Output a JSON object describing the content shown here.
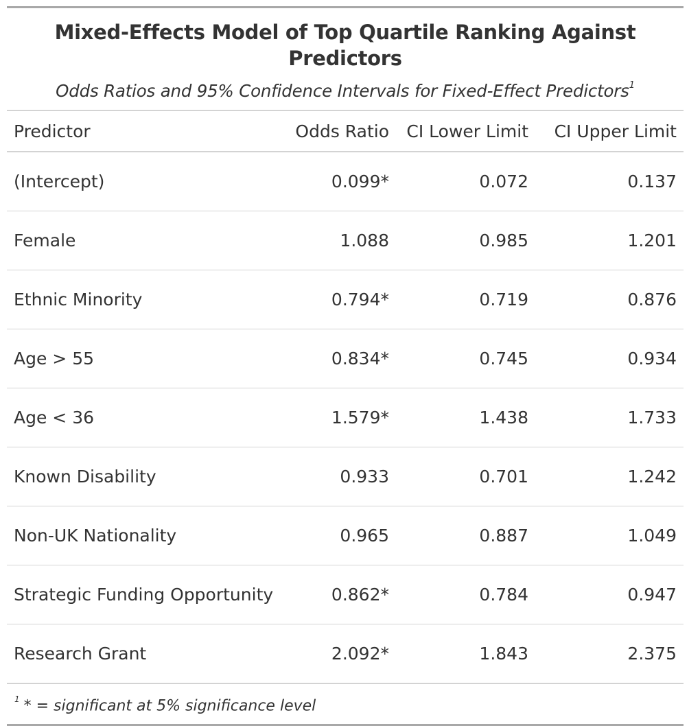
{
  "title": "Mixed-Effects Model of Top Quartile Ranking Against Predictors",
  "subtitle": "Odds Ratios and 95% Confidence Intervals for Fixed-Effect Predictors",
  "subtitle_marker": "1",
  "columns": [
    "Predictor",
    "Odds Ratio",
    "CI Lower Limit",
    "CI Upper Limit"
  ],
  "rows": [
    {
      "predictor": "(Intercept)",
      "odds_ratio": "0.099*",
      "ci_lower": "0.072",
      "ci_upper": "0.137"
    },
    {
      "predictor": "Female",
      "odds_ratio": "1.088",
      "ci_lower": "0.985",
      "ci_upper": "1.201"
    },
    {
      "predictor": "Ethnic Minority",
      "odds_ratio": "0.794*",
      "ci_lower": "0.719",
      "ci_upper": "0.876"
    },
    {
      "predictor": "Age > 55",
      "odds_ratio": "0.834*",
      "ci_lower": "0.745",
      "ci_upper": "0.934"
    },
    {
      "predictor": "Age < 36",
      "odds_ratio": "1.579*",
      "ci_lower": "1.438",
      "ci_upper": "1.733"
    },
    {
      "predictor": "Known Disability",
      "odds_ratio": "0.933",
      "ci_lower": "0.701",
      "ci_upper": "1.242"
    },
    {
      "predictor": "Non-UK Nationality",
      "odds_ratio": "0.965",
      "ci_lower": "0.887",
      "ci_upper": "1.049"
    },
    {
      "predictor": "Strategic Funding Opportunity",
      "odds_ratio": "0.862*",
      "ci_lower": "0.784",
      "ci_upper": "0.947"
    },
    {
      "predictor": "Research Grant",
      "odds_ratio": "2.092*",
      "ci_lower": "1.843",
      "ci_upper": "2.375"
    }
  ],
  "footnote_marker": "1",
  "footnote": "* = significant at 5% significance level"
}
